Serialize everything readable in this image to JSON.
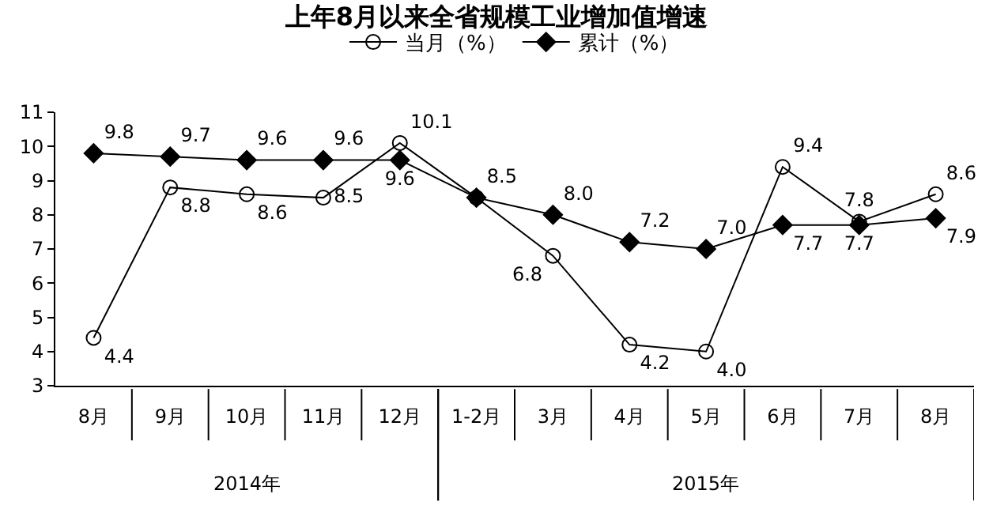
{
  "chart_data": {
    "type": "line",
    "title": "上年8月以来全省规模工业增加值增速",
    "categories": [
      "8月",
      "9月",
      "10月",
      "11月",
      "12月",
      "1-2月",
      "3月",
      "4月",
      "5月",
      "6月",
      "7月",
      "8月"
    ],
    "series": [
      {
        "name": "当月（%）",
        "color": "#000000",
        "marker": "circle",
        "values": [
          4.4,
          8.8,
          8.6,
          8.5,
          10.1,
          8.5,
          6.8,
          4.2,
          4.0,
          9.4,
          7.8,
          8.6
        ],
        "value_labels": [
          "4.4",
          "8.8",
          "8.6",
          "8.5",
          "10.1",
          null,
          "6.8",
          "4.2",
          "4.0",
          "9.4",
          "7.8",
          "8.6"
        ]
      },
      {
        "name": "累计（%）",
        "color": "#000000",
        "marker": "diamond",
        "values": [
          9.8,
          9.7,
          9.6,
          9.6,
          9.6,
          8.5,
          8.0,
          7.2,
          7.0,
          7.7,
          7.7,
          7.9
        ],
        "value_labels": [
          "9.8",
          "9.7",
          "9.6",
          "9.6",
          "9.6",
          "8.5",
          "8.0",
          "7.2",
          "7.0",
          "7.7",
          "7.7",
          "7.9"
        ]
      }
    ],
    "ylim": [
      3,
      11
    ],
    "yticks": [
      3,
      4,
      5,
      6,
      7,
      8,
      9,
      10,
      11
    ],
    "legend": "top",
    "annotations": [
      "2014年",
      "2015年"
    ]
  }
}
